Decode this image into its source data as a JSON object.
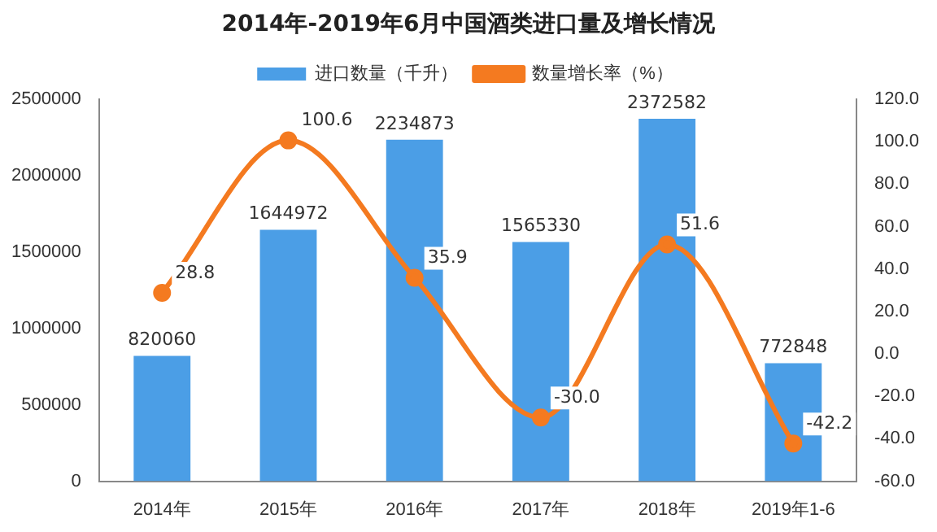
{
  "chart_data": {
    "type": "bar",
    "title": "2014年-2019年6月中国酒类进口量及增长情况",
    "categories": [
      "2014年",
      "2015年",
      "2016年",
      "2017年",
      "2018年",
      "2019年1-6"
    ],
    "series": [
      {
        "name": "进口数量（千升）",
        "color": "#4b9ee6",
        "values": [
          820060,
          1644972,
          2234873,
          1565330,
          2372582,
          772848
        ],
        "value_labels": [
          "820060",
          "1644972",
          "2234873",
          "1565330",
          "2372582",
          "772848"
        ]
      },
      {
        "name": "数量增长率（%）",
        "type": "line",
        "axis": "y2",
        "color": "#f47a20",
        "values": [
          28.8,
          100.6,
          35.9,
          -30.0,
          51.6,
          -42.2
        ],
        "value_labels": [
          "28.8",
          "100.6",
          "35.9",
          "-30.0",
          "51.6",
          "-42.2"
        ]
      }
    ],
    "ylim": [
      0,
      2500000
    ],
    "yticks": [
      0,
      500000,
      1000000,
      1500000,
      2000000,
      2500000
    ],
    "y2lim": [
      -60,
      120
    ],
    "y2ticks": [
      {
        "value": -60,
        "label": "-60.0"
      },
      {
        "value": -40,
        "label": "-40.0"
      },
      {
        "value": -20,
        "label": "-20.0"
      },
      {
        "value": 0,
        "label": "0.0"
      },
      {
        "value": 20,
        "label": "20.0"
      },
      {
        "value": 40,
        "label": "40.0"
      },
      {
        "value": 60,
        "label": "60.0"
      },
      {
        "value": 80,
        "label": "80.0"
      },
      {
        "value": 100,
        "label": "100.0"
      },
      {
        "value": 120,
        "label": "120.0"
      }
    ],
    "legend": "top",
    "marker": "circle",
    "line_style": "solid",
    "grid": false
  }
}
